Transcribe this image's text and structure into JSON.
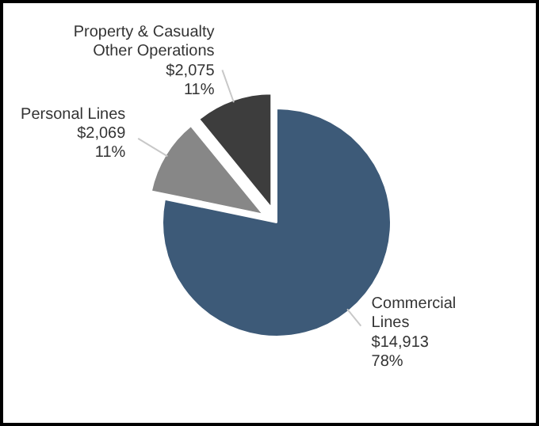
{
  "chart_data": {
    "type": "pie",
    "categories": [
      "Commercial\nLines",
      "Personal Lines",
      "Property & Casualty\nOther Operations"
    ],
    "values": [
      14913,
      2069,
      2075
    ],
    "value_labels": [
      "$14,913\n78%",
      "$2,069\n11%",
      "$2,075\n11%"
    ],
    "colors": [
      "#3d5a78",
      "#878787",
      "#3d3d3d"
    ]
  }
}
